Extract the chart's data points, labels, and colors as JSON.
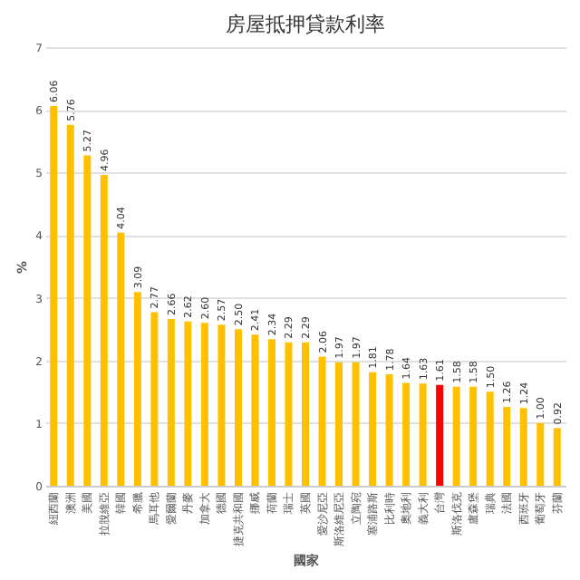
{
  "chart_data": {
    "type": "bar",
    "title": "房屋抵押貸款利率",
    "xlabel": "國家",
    "ylabel": "%",
    "categories": [
      "紐西蘭",
      "澳洲",
      "美國",
      "拉脫維亞",
      "韓國",
      "希臘",
      "馬耳他",
      "愛爾蘭",
      "丹麥",
      "加拿大",
      "德國",
      "捷克共和國",
      "挪威",
      "荷蘭",
      "瑞士",
      "英國",
      "愛沙尼亞",
      "斯洛維尼亞",
      "立陶宛",
      "塞浦路斯",
      "比利時",
      "奧地利",
      "義大利",
      "台灣",
      "斯洛伐克",
      "盧森堡",
      "瑞典",
      "法國",
      "西班牙",
      "葡萄牙",
      "芬蘭"
    ],
    "values": [
      6.06,
      5.76,
      5.27,
      4.96,
      4.04,
      3.09,
      2.77,
      2.66,
      2.62,
      2.6,
      2.57,
      2.5,
      2.41,
      2.34,
      2.29,
      2.29,
      2.06,
      1.97,
      1.97,
      1.81,
      1.78,
      1.64,
      1.63,
      1.61,
      1.58,
      1.58,
      1.5,
      1.26,
      1.24,
      1.0,
      0.92
    ],
    "value_labels": [
      "6.06",
      "5.76",
      "5.27",
      "4.96",
      "4.04",
      "3.09",
      "2.77",
      "2.66",
      "2.62",
      "2.60",
      "2.57",
      "2.50",
      "2.41",
      "2.34",
      "2.29",
      "2.29",
      "2.06",
      "1.97",
      "1.97",
      "1.81",
      "1.78",
      "1.64",
      "1.63",
      "1.61",
      "1.58",
      "1.58",
      "1.50",
      "1.26",
      "1.24",
      "1.00",
      "0.92"
    ],
    "colors": [
      "#ffc000",
      "#ffc000",
      "#ffc000",
      "#ffc000",
      "#ffc000",
      "#ffc000",
      "#ffc000",
      "#ffc000",
      "#ffc000",
      "#ffc000",
      "#ffc000",
      "#ffc000",
      "#ffc000",
      "#ffc000",
      "#ffc000",
      "#ffc000",
      "#ffc000",
      "#ffc000",
      "#ffc000",
      "#ffc000",
      "#ffc000",
      "#ffc000",
      "#ffc000",
      "#ff0000",
      "#ffc000",
      "#ffc000",
      "#ffc000",
      "#ffc000",
      "#ffc000",
      "#ffc000",
      "#ffc000"
    ],
    "ylim": [
      0,
      7
    ],
    "yticks": [
      0,
      1,
      2,
      3,
      4,
      5,
      6,
      7
    ],
    "grid": "y"
  }
}
